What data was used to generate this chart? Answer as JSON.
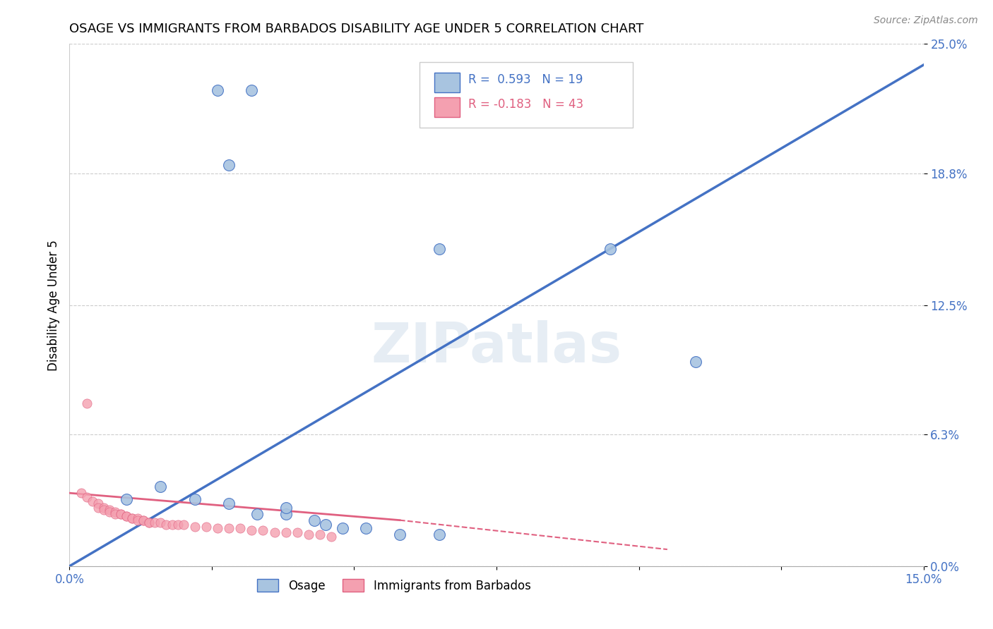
{
  "title": "OSAGE VS IMMIGRANTS FROM BARBADOS DISABILITY AGE UNDER 5 CORRELATION CHART",
  "source": "Source: ZipAtlas.com",
  "ylabel": "Disability Age Under 5",
  "legend_bottom": [
    "Osage",
    "Immigrants from Barbados"
  ],
  "r_osage": 0.593,
  "n_osage": 19,
  "r_barbados": -0.183,
  "n_barbados": 43,
  "xlim": [
    0.0,
    0.15
  ],
  "ylim": [
    0.0,
    0.25
  ],
  "yticks": [
    0.0,
    0.063,
    0.125,
    0.188,
    0.25
  ],
  "ytick_labels": [
    "0.0%",
    "6.3%",
    "12.5%",
    "18.8%",
    "25.0%"
  ],
  "xticks": [
    0.0,
    0.025,
    0.05,
    0.075,
    0.1,
    0.125,
    0.15
  ],
  "xtick_labels": [
    "0.0%",
    "",
    "",
    "",
    "",
    "",
    "15.0%"
  ],
  "color_osage": "#a8c4e0",
  "color_barbados": "#f4a0b0",
  "line_color_osage": "#4472c4",
  "line_color_barbados": "#e06080",
  "watermark": "ZIPatlas",
  "osage_line": [
    [
      0.0,
      0.0
    ],
    [
      0.15,
      0.24
    ]
  ],
  "barbados_line_solid": [
    [
      0.0,
      0.035
    ],
    [
      0.058,
      0.022
    ]
  ],
  "barbados_line_dashed": [
    [
      0.058,
      0.022
    ],
    [
      0.105,
      0.008
    ]
  ],
  "osage_points": [
    [
      0.026,
      0.228
    ],
    [
      0.032,
      0.228
    ],
    [
      0.028,
      0.192
    ],
    [
      0.065,
      0.152
    ],
    [
      0.095,
      0.152
    ],
    [
      0.11,
      0.098
    ],
    [
      0.01,
      0.032
    ],
    [
      0.016,
      0.038
    ],
    [
      0.022,
      0.032
    ],
    [
      0.028,
      0.03
    ],
    [
      0.033,
      0.025
    ],
    [
      0.038,
      0.025
    ],
    [
      0.038,
      0.028
    ],
    [
      0.043,
      0.022
    ],
    [
      0.045,
      0.02
    ],
    [
      0.048,
      0.018
    ],
    [
      0.052,
      0.018
    ],
    [
      0.058,
      0.015
    ],
    [
      0.065,
      0.015
    ]
  ],
  "barbados_points": [
    [
      0.003,
      0.078
    ],
    [
      0.002,
      0.035
    ],
    [
      0.003,
      0.033
    ],
    [
      0.004,
      0.031
    ],
    [
      0.005,
      0.03
    ],
    [
      0.005,
      0.028
    ],
    [
      0.006,
      0.028
    ],
    [
      0.006,
      0.027
    ],
    [
      0.007,
      0.027
    ],
    [
      0.007,
      0.026
    ],
    [
      0.008,
      0.026
    ],
    [
      0.008,
      0.025
    ],
    [
      0.009,
      0.025
    ],
    [
      0.009,
      0.025
    ],
    [
      0.01,
      0.024
    ],
    [
      0.01,
      0.024
    ],
    [
      0.011,
      0.023
    ],
    [
      0.011,
      0.023
    ],
    [
      0.012,
      0.023
    ],
    [
      0.012,
      0.022
    ],
    [
      0.013,
      0.022
    ],
    [
      0.013,
      0.022
    ],
    [
      0.014,
      0.021
    ],
    [
      0.014,
      0.021
    ],
    [
      0.015,
      0.021
    ],
    [
      0.016,
      0.021
    ],
    [
      0.017,
      0.02
    ],
    [
      0.018,
      0.02
    ],
    [
      0.019,
      0.02
    ],
    [
      0.02,
      0.02
    ],
    [
      0.022,
      0.019
    ],
    [
      0.024,
      0.019
    ],
    [
      0.026,
      0.018
    ],
    [
      0.028,
      0.018
    ],
    [
      0.03,
      0.018
    ],
    [
      0.032,
      0.017
    ],
    [
      0.034,
      0.017
    ],
    [
      0.036,
      0.016
    ],
    [
      0.038,
      0.016
    ],
    [
      0.04,
      0.016
    ],
    [
      0.042,
      0.015
    ],
    [
      0.044,
      0.015
    ],
    [
      0.046,
      0.014
    ]
  ]
}
